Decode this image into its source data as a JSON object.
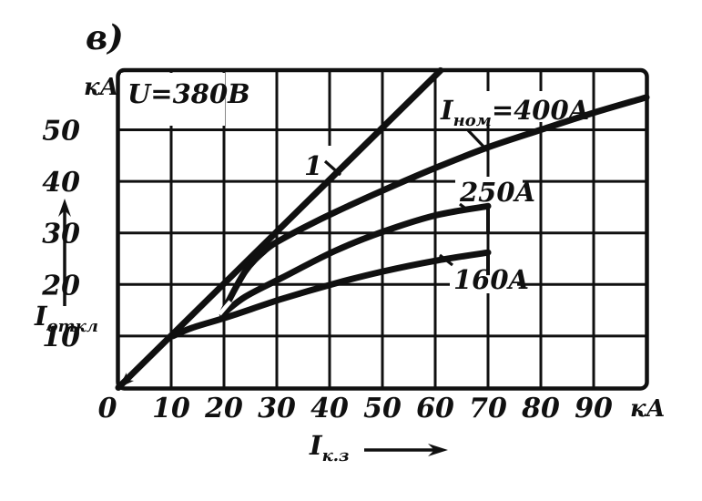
{
  "figure_label": "в)",
  "plot_annotation": "U=380В",
  "colors": {
    "ink": "#101010",
    "paper": "#ffffff"
  },
  "axes": {
    "x": {
      "unit": "кА",
      "ticks": [
        0,
        10,
        20,
        30,
        40,
        50,
        60,
        70,
        80,
        90
      ],
      "range": [
        0,
        100
      ],
      "label": {
        "base": "I",
        "sub": "к.з"
      }
    },
    "y": {
      "unit": "кА",
      "ticks": [
        10,
        20,
        30,
        40,
        50
      ],
      "range": [
        0,
        61.5
      ],
      "label": {
        "base": "I",
        "sub": "откл"
      }
    }
  },
  "chart_data": {
    "type": "line",
    "grid": true,
    "x_axis": "I к.з, кА (short-circuit current)",
    "y_axis": "I откл, кА (breaking current)",
    "annotation": "U=380В",
    "x_ticks": [
      0,
      10,
      20,
      30,
      40,
      50,
      60,
      70,
      80,
      90
    ],
    "y_ticks": [
      10,
      20,
      30,
      40,
      50
    ],
    "xlim": [
      0,
      100
    ],
    "ylim": [
      0,
      61.5
    ],
    "series": [
      {
        "name": "1",
        "role": "limit-line",
        "points": [
          [
            0,
            0
          ],
          [
            61,
            61.5
          ]
        ],
        "label": {
          "post": "1"
        }
      },
      {
        "name": "Iном=400A",
        "role": "curve",
        "points": [
          [
            19.7,
            14.5
          ],
          [
            24,
            22.5
          ],
          [
            28,
            26.8
          ],
          [
            31,
            28.8
          ],
          [
            36,
            31.5
          ],
          [
            41,
            34
          ],
          [
            50,
            38.2
          ],
          [
            60,
            42.6
          ],
          [
            70,
            46.6
          ],
          [
            80,
            50
          ],
          [
            90,
            53.3
          ],
          [
            100,
            56.3
          ]
        ],
        "label": {
          "base": "I",
          "sub": "ном",
          "post": "=400A"
        }
      },
      {
        "name": "250A",
        "role": "curve",
        "points": [
          [
            19.7,
            14.2
          ],
          [
            24,
            17.6
          ],
          [
            31,
            21.3
          ],
          [
            41,
            26.5
          ],
          [
            50,
            30.2
          ],
          [
            60,
            33.4
          ],
          [
            70,
            35.2
          ]
        ],
        "end_drop": 29.8,
        "label": {
          "post": "250A"
        }
      },
      {
        "name": "160A",
        "role": "curve",
        "points": [
          [
            10.3,
            10
          ],
          [
            14,
            11.6
          ],
          [
            21,
            13.8
          ],
          [
            31,
            17.2
          ],
          [
            41,
            20.2
          ],
          [
            50,
            22.5
          ],
          [
            60,
            24.6
          ],
          [
            70,
            26.2
          ]
        ],
        "end_drop": 21.8,
        "label": {
          "post": "160A"
        }
      }
    ]
  }
}
